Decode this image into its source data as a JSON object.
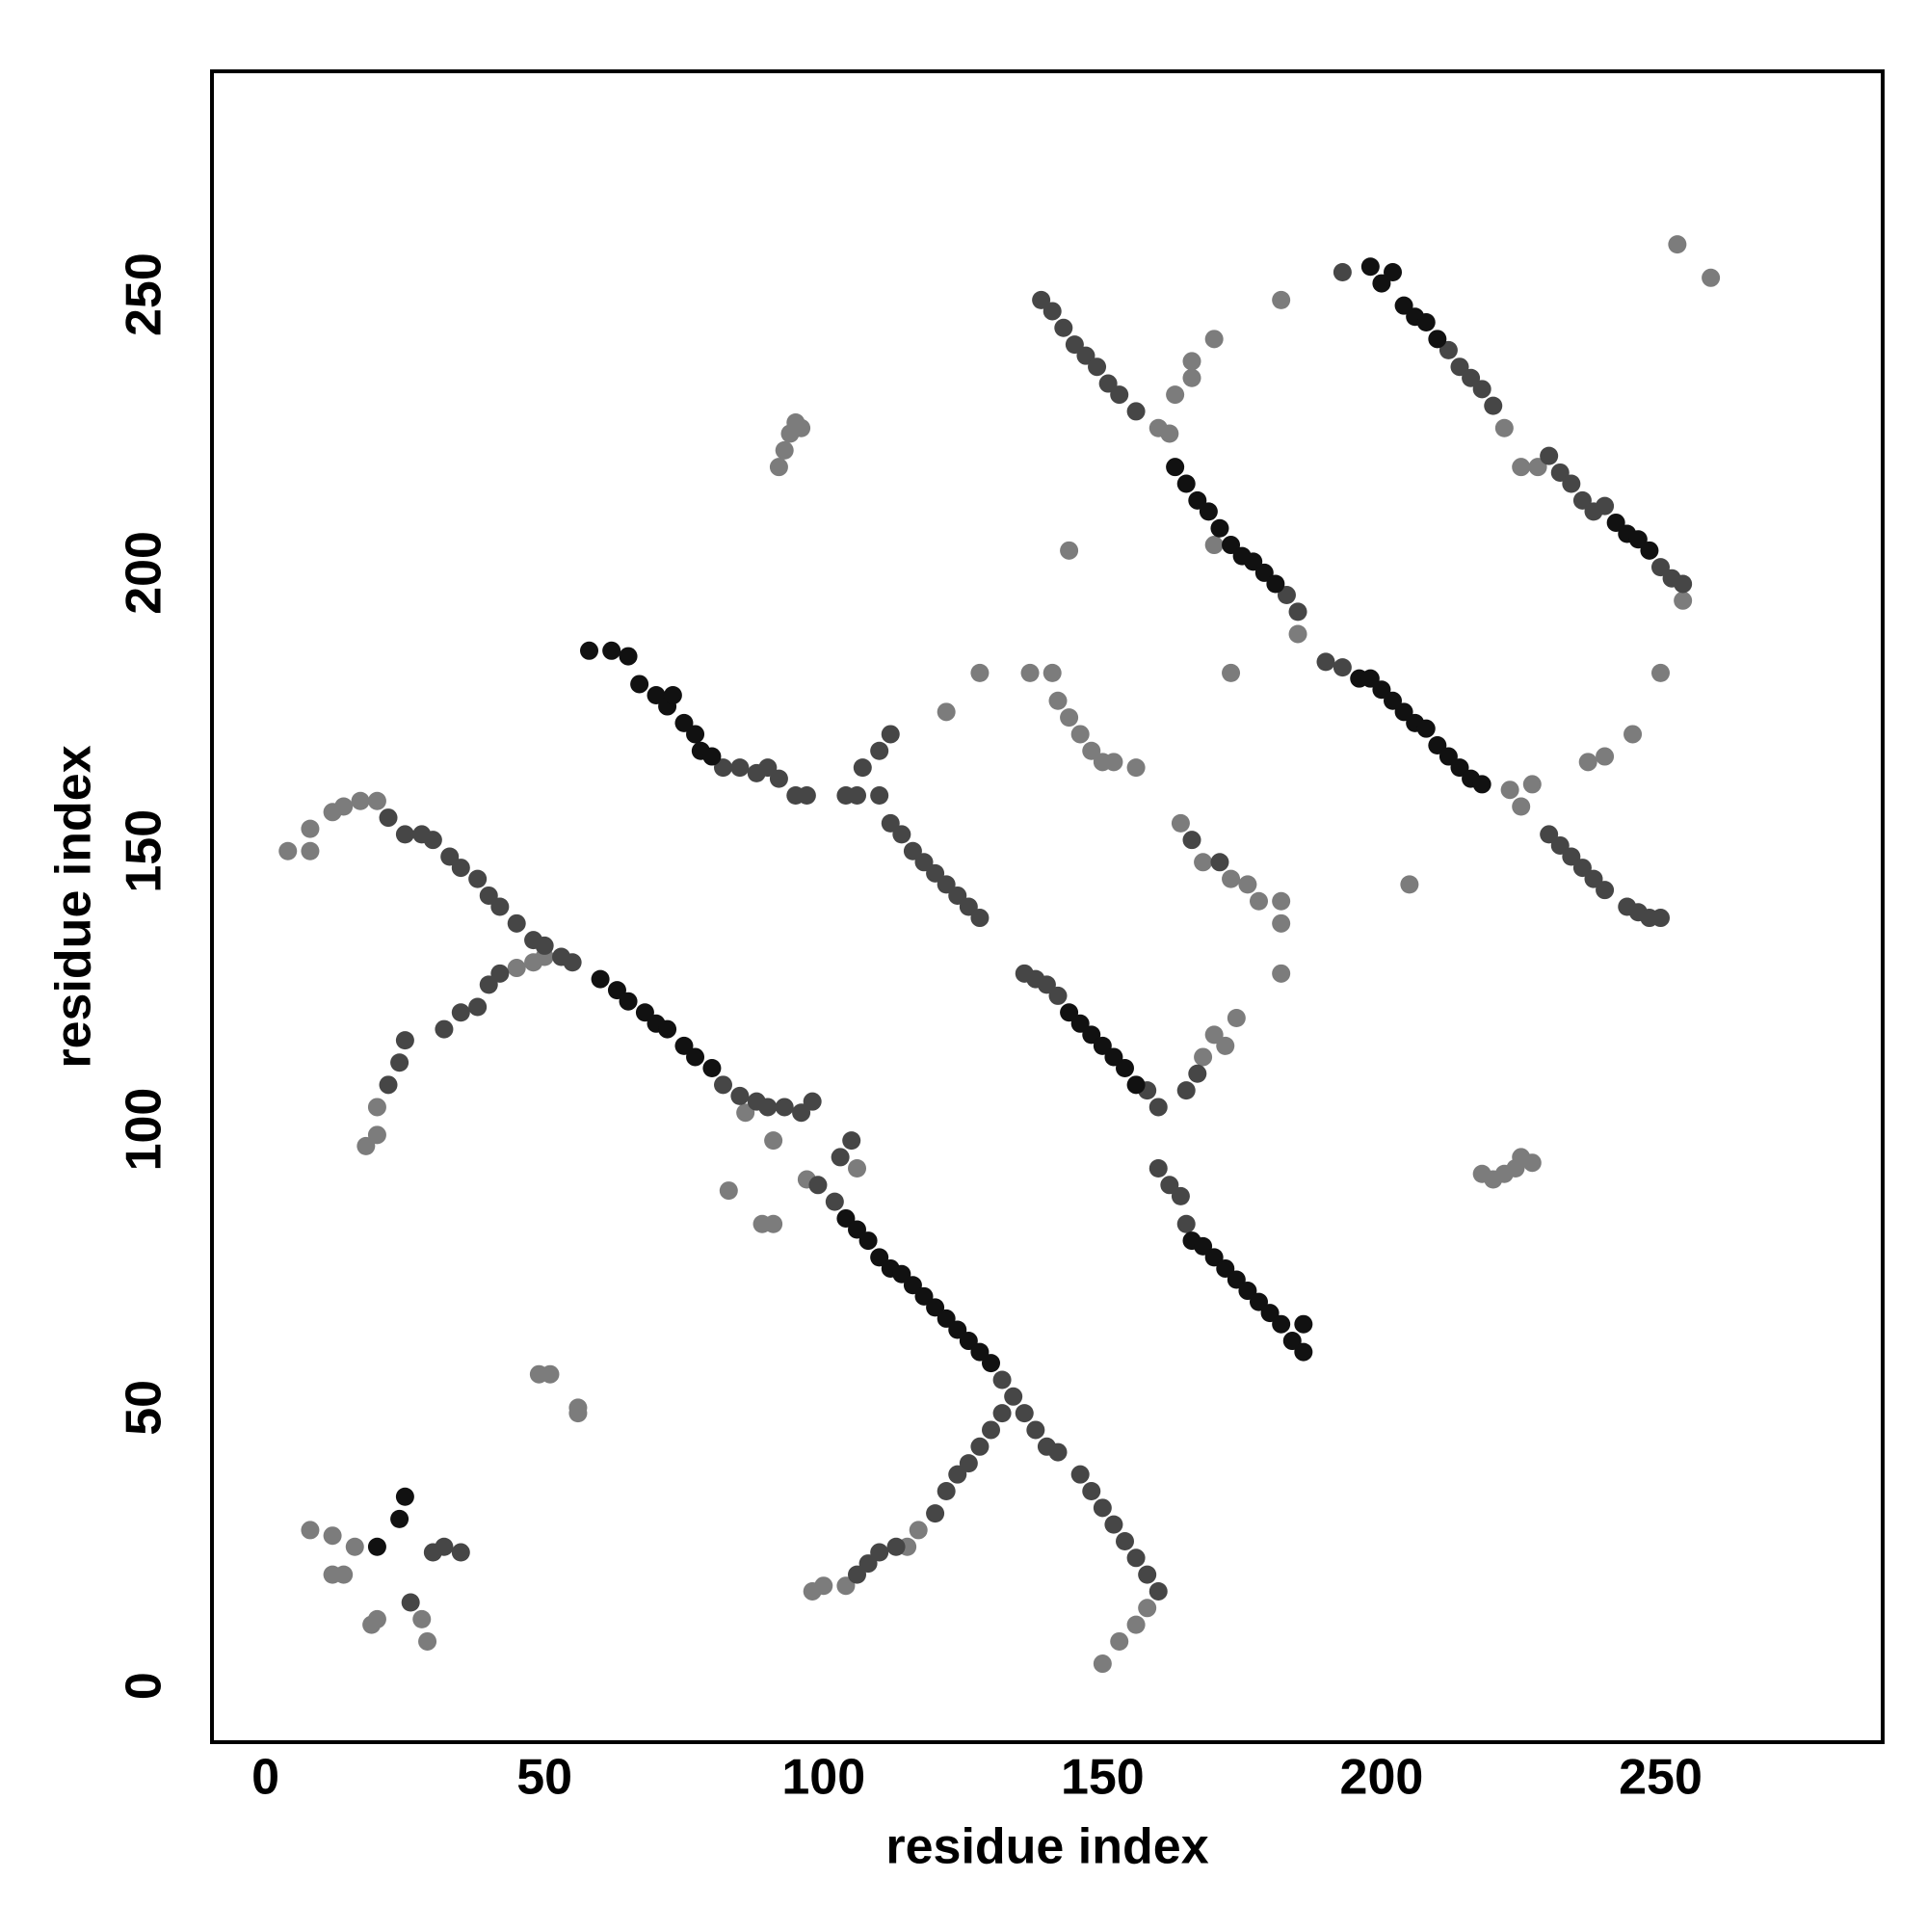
{
  "chart_data": {
    "type": "scatter",
    "xlabel": "residue index",
    "ylabel": "residue index",
    "xlim": [
      -9.6,
      289.8
    ],
    "ylim": [
      -10.1,
      290.1
    ],
    "xticks": [
      0,
      50,
      100,
      150,
      200,
      250
    ],
    "yticks": [
      0,
      50,
      100,
      150,
      200,
      250
    ],
    "grid": false,
    "series": [
      {
        "color": "#7c7c7c",
        "x": [
          4,
          8,
          8,
          12,
          14,
          17,
          20,
          18,
          20,
          20,
          45,
          48,
          50,
          92,
          93,
          94,
          95,
          96,
          8,
          12,
          12,
          14,
          16,
          19,
          20,
          28,
          29,
          49,
          51,
          56,
          56,
          83,
          89,
          91,
          91,
          86,
          97,
          98,
          100,
          104,
          115,
          117,
          106,
          160,
          162,
          163,
          166,
          166,
          170,
          182,
          144,
          185,
          170,
          222,
          225,
          228,
          254,
          253,
          259,
          173,
          223,
          225,
          227,
          237,
          240,
          245,
          250,
          205,
          137,
          141,
          142,
          144,
          146,
          148,
          150,
          152,
          156,
          128,
          122,
          164,
          168,
          173,
          176,
          178,
          182,
          182,
          182,
          218,
          220,
          222,
          224,
          225,
          227,
          158,
          156,
          153,
          150,
          168,
          170,
          172,
          174
        ],
        "y": [
          150,
          150,
          154,
          157,
          158,
          159,
          159,
          97,
          99,
          104,
          129,
          130,
          131,
          219,
          222,
          225,
          227,
          226,
          28,
          27,
          20,
          20,
          25,
          11,
          12,
          12,
          8,
          56,
          56,
          49,
          50,
          89,
          83,
          83,
          98,
          103,
          91,
          17,
          18,
          18,
          25,
          28,
          93,
          226,
          225,
          232,
          235,
          238,
          242,
          249,
          204,
          189,
          205,
          226,
          219,
          219,
          195,
          259,
          253,
          182,
          161,
          158,
          162,
          166,
          167,
          171,
          182,
          144,
          182,
          182,
          177,
          174,
          171,
          168,
          166,
          166,
          165,
          182,
          175,
          155,
          148,
          145,
          144,
          141,
          141,
          137,
          128,
          92,
          91,
          92,
          93,
          95,
          94,
          14,
          11,
          8,
          4,
          113,
          117,
          115,
          120
        ]
      },
      {
        "color": "#464646",
        "x": [
          22,
          25,
          28,
          30,
          33,
          35,
          38,
          40,
          42,
          45,
          48,
          50,
          53,
          55,
          82,
          85,
          88,
          90,
          93,
          96,
          98,
          22,
          24,
          25,
          32,
          35,
          38,
          40,
          42,
          82,
          85,
          88,
          90,
          92,
          95,
          97,
          104,
          106,
          110,
          112,
          114,
          116,
          118,
          120,
          122,
          124,
          126,
          128,
          107,
          110,
          112,
          99,
          102,
          132,
          134,
          136,
          138,
          140,
          142,
          146,
          148,
          150,
          152,
          154,
          156,
          158,
          160,
          103,
          105,
          106,
          108,
          110,
          113,
          120,
          122,
          124,
          126,
          128,
          130,
          132,
          136,
          138,
          140,
          142,
          158,
          160,
          165,
          167,
          160,
          162,
          164,
          165,
          139,
          141,
          143,
          145,
          147,
          149,
          151,
          153,
          156,
          183,
          185,
          193,
          212,
          214,
          216,
          218,
          220,
          230,
          232,
          234,
          236,
          238,
          240,
          250,
          252,
          254,
          190,
          193,
          230,
          232,
          234,
          236,
          238,
          240,
          244,
          246,
          248,
          250,
          30,
          32,
          35,
          26,
          166,
          171
        ],
        "y": [
          156,
          153,
          153,
          152,
          149,
          147,
          145,
          142,
          140,
          137,
          134,
          133,
          131,
          130,
          108,
          106,
          105,
          104,
          104,
          103,
          105,
          108,
          112,
          116,
          118,
          121,
          122,
          126,
          128,
          165,
          165,
          164,
          165,
          163,
          160,
          160,
          160,
          160,
          160,
          155,
          153,
          150,
          148,
          146,
          144,
          142,
          140,
          138,
          165,
          168,
          171,
          90,
          87,
          55,
          52,
          49,
          46,
          43,
          42,
          38,
          35,
          32,
          29,
          26,
          23,
          20,
          17,
          95,
          98,
          20,
          22,
          24,
          25,
          31,
          35,
          38,
          40,
          43,
          46,
          49,
          128,
          127,
          126,
          124,
          107,
          104,
          107,
          110,
          93,
          90,
          88,
          83,
          249,
          247,
          244,
          241,
          239,
          237,
          234,
          232,
          229,
          196,
          193,
          254,
          240,
          237,
          235,
          233,
          230,
          221,
          218,
          216,
          213,
          211,
          212,
          201,
          199,
          198,
          184,
          183,
          153,
          151,
          149,
          147,
          145,
          143,
          140,
          139,
          138,
          138,
          24,
          25,
          24,
          15,
          152,
          148
        ]
      },
      {
        "color": "#111111",
        "x": [
          58,
          62,
          65,
          67,
          70,
          72,
          73,
          75,
          77,
          78,
          80,
          60,
          63,
          65,
          68,
          70,
          72,
          75,
          77,
          80,
          104,
          106,
          108,
          110,
          112,
          114,
          116,
          118,
          120,
          122,
          124,
          126,
          128,
          130,
          166,
          168,
          170,
          172,
          174,
          176,
          178,
          180,
          182,
          184,
          186,
          186,
          163,
          165,
          167,
          169,
          171,
          173,
          175,
          177,
          179,
          181,
          198,
          200,
          202,
          204,
          206,
          208,
          210,
          242,
          244,
          246,
          248,
          196,
          198,
          200,
          202,
          204,
          206,
          208,
          210,
          212,
          214,
          216,
          218,
          144,
          146,
          148,
          150,
          152,
          154,
          156,
          24,
          25,
          20
        ],
        "y": [
          186,
          186,
          185,
          180,
          178,
          176,
          178,
          173,
          171,
          168,
          167,
          127,
          125,
          123,
          121,
          119,
          118,
          115,
          113,
          111,
          84,
          82,
          80,
          77,
          75,
          74,
          72,
          70,
          68,
          66,
          64,
          62,
          60,
          58,
          80,
          79,
          77,
          75,
          73,
          71,
          69,
          67,
          65,
          62,
          60,
          65,
          219,
          216,
          213,
          211,
          208,
          205,
          203,
          202,
          200,
          198,
          255,
          252,
          254,
          248,
          246,
          245,
          242,
          209,
          207,
          206,
          204,
          181,
          181,
          179,
          177,
          175,
          173,
          172,
          169,
          167,
          165,
          163,
          162,
          121,
          119,
          117,
          115,
          113,
          111,
          108,
          30,
          34,
          25
        ]
      }
    ]
  }
}
